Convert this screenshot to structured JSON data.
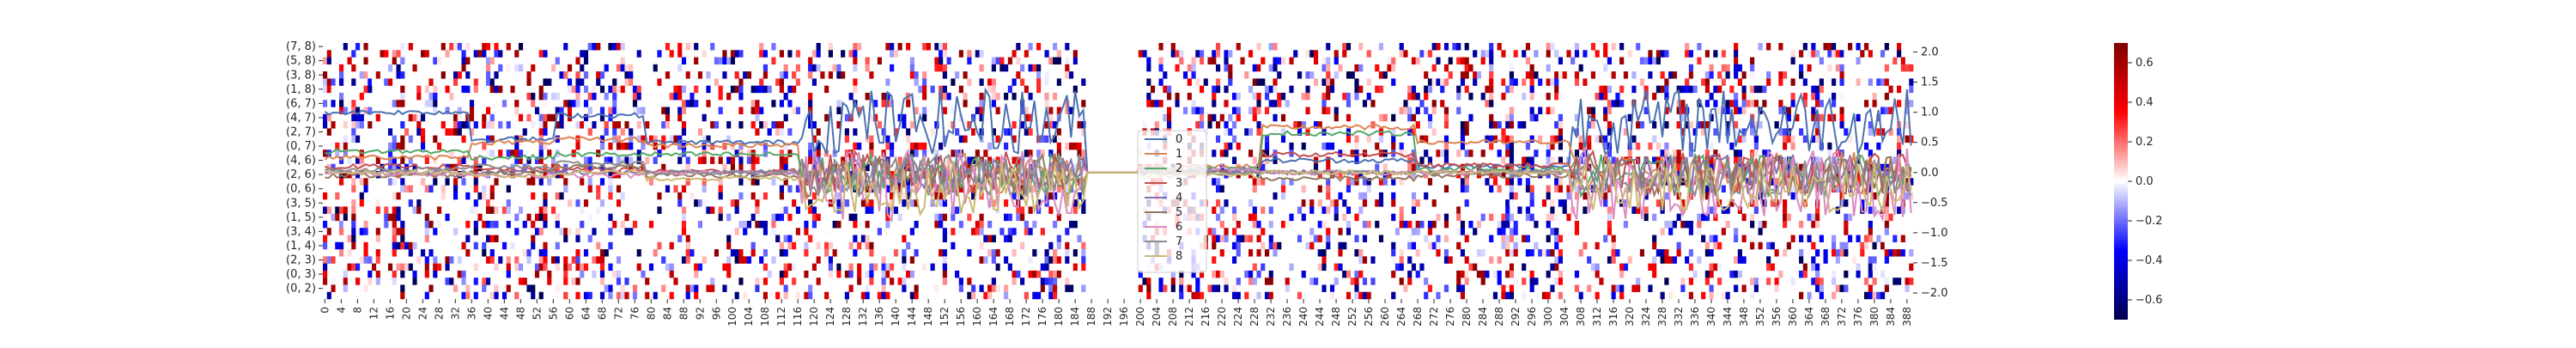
{
  "chart_data": {
    "type": "heatmap",
    "title": "",
    "heatmap": {
      "y_tick_labels": [
        "(7, 8)",
        "(5, 8)",
        "(3, 8)",
        "(1, 8)",
        "(6, 7)",
        "(4, 7)",
        "(2, 7)",
        "(0, 7)",
        "(4, 6)",
        "(2, 6)",
        "(0, 6)",
        "(3, 5)",
        "(1, 5)",
        "(3, 4)",
        "(1, 4)",
        "(2, 3)",
        "(0, 3)",
        "(0, 2)"
      ],
      "x_tick_labels": [
        "0",
        "4",
        "8",
        "12",
        "16",
        "20",
        "24",
        "28",
        "32",
        "36",
        "40",
        "44",
        "48",
        "52",
        "56",
        "60",
        "64",
        "68",
        "72",
        "76",
        "80",
        "84",
        "88",
        "92",
        "96",
        "100",
        "104",
        "108",
        "112",
        "116",
        "120",
        "124",
        "128",
        "132",
        "136",
        "140",
        "144",
        "148",
        "152",
        "156",
        "160",
        "164",
        "168",
        "172",
        "176",
        "180",
        "184",
        "188",
        "192",
        "196",
        "200",
        "204",
        "208",
        "212",
        "216",
        "220",
        "224",
        "228",
        "232",
        "236",
        "240",
        "244",
        "248",
        "252",
        "256",
        "260",
        "264",
        "268",
        "272",
        "276",
        "280",
        "284",
        "288",
        "292",
        "296",
        "300",
        "304",
        "308",
        "312",
        "316",
        "320",
        "324",
        "328",
        "332",
        "336",
        "340",
        "344",
        "348",
        "352",
        "356",
        "360",
        "364",
        "368",
        "372",
        "376",
        "380",
        "384",
        "388"
      ],
      "n_rows": 36,
      "n_cols": 390,
      "color_range": [
        -0.7,
        0.7
      ],
      "colormap": "seismic",
      "colorbar_ticks": [
        "0.6",
        "0.4",
        "0.2",
        "0.0",
        "−0.2",
        "−0.4",
        "−0.6"
      ],
      "active_column_segments": [
        [
          0,
          117
        ],
        [
          118,
          187
        ],
        [
          200,
          390
        ]
      ]
    },
    "overlay": {
      "type": "line",
      "ylim": [
        -2.1,
        2.15
      ],
      "y_tick_labels": [
        "2.0",
        "1.5",
        "1.0",
        "0.5",
        "0.0",
        "−0.5",
        "−1.0",
        "−1.5",
        "−2.0"
      ],
      "series_names": [
        "0",
        "1",
        "2",
        "3",
        "4",
        "5",
        "6",
        "7",
        "8"
      ],
      "series_colors": [
        "#4c72b0",
        "#dd8452",
        "#55a868",
        "#c44e52",
        "#8172b3",
        "#937860",
        "#da8bc3",
        "#8c8c8c",
        "#ccb974"
      ],
      "legend_placement": "center",
      "regime_breakpoints": [
        0,
        36,
        57,
        79,
        117,
        187,
        200,
        230,
        268,
        306,
        390
      ]
    },
    "grid": false
  }
}
